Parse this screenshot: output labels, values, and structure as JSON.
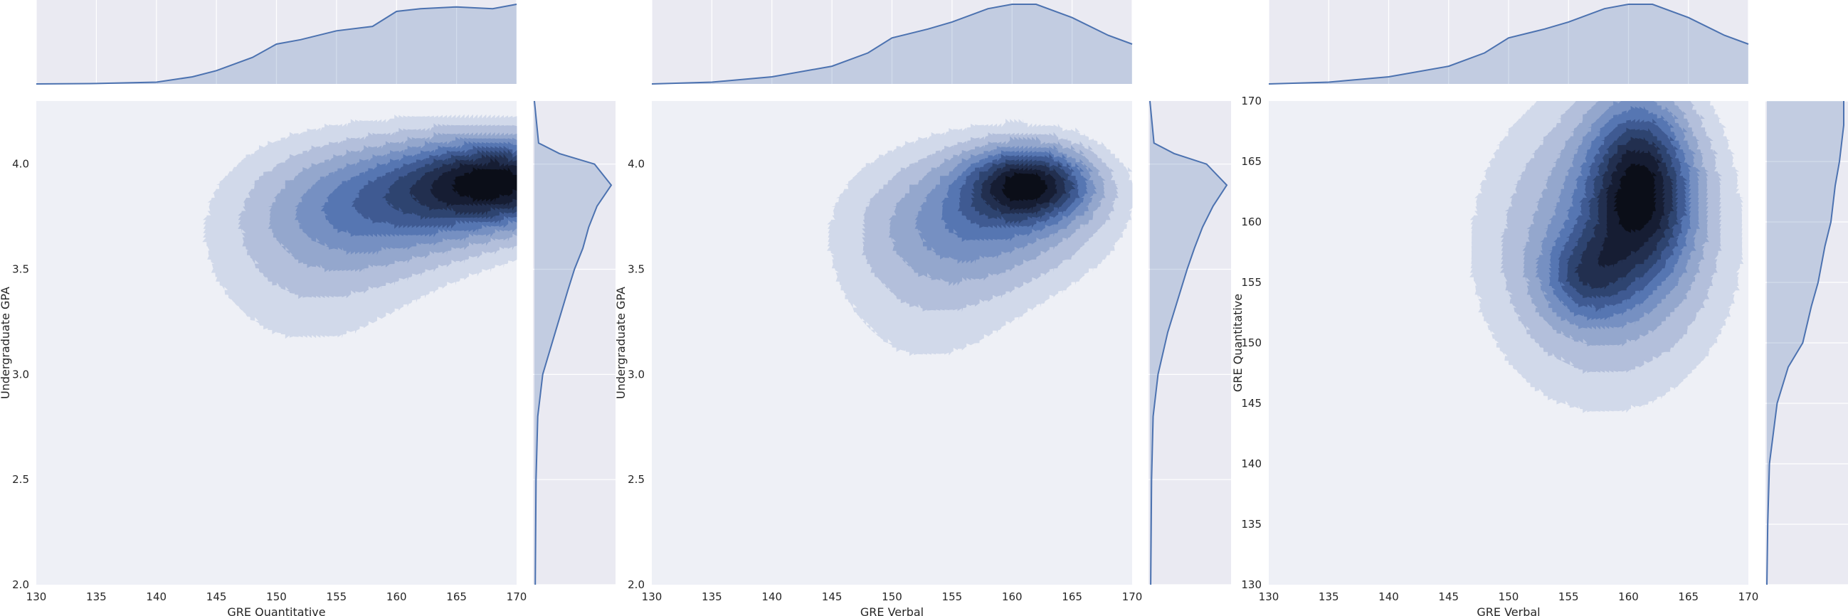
{
  "chart_data": [
    {
      "type": "kde-joint",
      "xlabel": "GRE Quantitative",
      "ylabel": "Undergraduate GPA",
      "xlim": [
        130,
        170
      ],
      "ylim": [
        2.0,
        4.3
      ],
      "xticks": [
        130,
        135,
        140,
        145,
        150,
        155,
        160,
        165,
        170
      ],
      "yticks": [
        2.0,
        2.5,
        3.0,
        3.5,
        4.0
      ],
      "grid": true,
      "color": "#4c72b0",
      "kde_peaks": [
        {
          "x": 169,
          "y": 3.92,
          "sx": 5.2,
          "sy": 0.14,
          "w": 1.0
        },
        {
          "x": 160,
          "y": 3.82,
          "sx": 7.0,
          "sy": 0.2,
          "w": 0.55
        },
        {
          "x": 153,
          "y": 3.55,
          "sx": 6.5,
          "sy": 0.32,
          "w": 0.22
        }
      ],
      "marginal_x": {
        "x": [
          130,
          135,
          140,
          143,
          145,
          148,
          150,
          152,
          155,
          158,
          160,
          162,
          165,
          168,
          170
        ],
        "y": [
          0.0,
          0.005,
          0.02,
          0.08,
          0.15,
          0.3,
          0.45,
          0.5,
          0.6,
          0.65,
          0.82,
          0.85,
          0.87,
          0.85,
          0.9
        ]
      },
      "marginal_y": {
        "y": [
          2.0,
          2.5,
          2.8,
          3.0,
          3.2,
          3.4,
          3.5,
          3.6,
          3.7,
          3.8,
          3.9,
          4.0,
          4.05,
          4.1,
          4.3
        ],
        "d": [
          0.01,
          0.02,
          0.04,
          0.1,
          0.25,
          0.4,
          0.48,
          0.58,
          0.65,
          0.75,
          0.92,
          0.72,
          0.3,
          0.05,
          0.0
        ]
      }
    },
    {
      "type": "kde-joint",
      "xlabel": "GRE Verbal",
      "ylabel": "Undergraduate GPA",
      "xlim": [
        130,
        170
      ],
      "ylim": [
        2.0,
        4.3
      ],
      "xticks": [
        130,
        135,
        140,
        145,
        150,
        155,
        160,
        165,
        170
      ],
      "yticks": [
        2.0,
        2.5,
        3.0,
        3.5,
        4.0
      ],
      "grid": true,
      "color": "#4c72b0",
      "kde_peaks": [
        {
          "x": 161.5,
          "y": 3.91,
          "sx": 3.5,
          "sy": 0.12,
          "w": 1.0
        },
        {
          "x": 158,
          "y": 3.75,
          "sx": 6.5,
          "sy": 0.22,
          "w": 0.5
        },
        {
          "x": 153,
          "y": 3.45,
          "sx": 6.0,
          "sy": 0.35,
          "w": 0.2
        }
      ],
      "marginal_x": {
        "x": [
          130,
          135,
          140,
          145,
          148,
          150,
          153,
          155,
          158,
          160,
          162,
          165,
          168,
          170
        ],
        "y": [
          0.0,
          0.02,
          0.08,
          0.2,
          0.35,
          0.52,
          0.62,
          0.7,
          0.85,
          0.9,
          0.9,
          0.75,
          0.55,
          0.45
        ]
      },
      "marginal_y": {
        "y": [
          2.0,
          2.5,
          2.8,
          3.0,
          3.2,
          3.4,
          3.5,
          3.6,
          3.7,
          3.8,
          3.9,
          4.0,
          4.05,
          4.1,
          4.3
        ],
        "d": [
          0.01,
          0.02,
          0.04,
          0.1,
          0.22,
          0.38,
          0.46,
          0.55,
          0.65,
          0.78,
          0.95,
          0.7,
          0.3,
          0.05,
          0.0
        ]
      }
    },
    {
      "type": "kde-joint",
      "xlabel": "GRE Verbal",
      "ylabel": "GRE Quantitative",
      "xlim": [
        130,
        170
      ],
      "ylim": [
        130,
        170
      ],
      "xticks": [
        130,
        135,
        140,
        145,
        150,
        155,
        160,
        165,
        170
      ],
      "yticks": [
        130,
        135,
        140,
        145,
        150,
        155,
        160,
        165,
        170
      ],
      "grid": true,
      "color": "#4c72b0",
      "kde_peaks": [
        {
          "x": 161,
          "y": 163,
          "sx": 3.0,
          "sy": 5.0,
          "w": 1.0
        },
        {
          "x": 156.5,
          "y": 155.5,
          "sx": 2.5,
          "sy": 2.5,
          "w": 0.45
        },
        {
          "x": 158,
          "y": 158,
          "sx": 6.5,
          "sy": 8.0,
          "w": 0.55
        }
      ],
      "marginal_x": {
        "x": [
          130,
          135,
          140,
          145,
          148,
          150,
          153,
          155,
          158,
          160,
          162,
          165,
          168,
          170
        ],
        "y": [
          0.0,
          0.02,
          0.08,
          0.2,
          0.35,
          0.52,
          0.62,
          0.7,
          0.85,
          0.9,
          0.9,
          0.75,
          0.55,
          0.45
        ]
      },
      "marginal_y": {
        "y": [
          130,
          135,
          140,
          145,
          148,
          150,
          153,
          155,
          158,
          160,
          163,
          165,
          168,
          170
        ],
        "d": [
          0.0,
          0.01,
          0.03,
          0.12,
          0.25,
          0.42,
          0.52,
          0.6,
          0.68,
          0.75,
          0.8,
          0.85,
          0.9,
          0.9
        ]
      }
    }
  ]
}
